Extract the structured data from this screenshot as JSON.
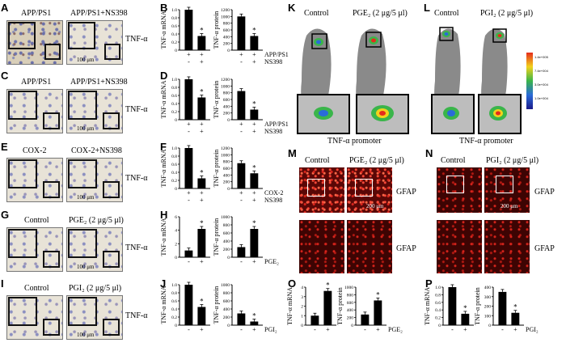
{
  "panels": {
    "A": {
      "letter": "A",
      "left": "APP/PS1",
      "right": "APP/PS1+NS398",
      "marker": "TNF-α",
      "scale": "100 μm"
    },
    "C": {
      "letter": "C",
      "left": "APP/PS1",
      "right": "APP/PS1+NS398",
      "marker": "TNF-α",
      "scale": "100 μm"
    },
    "E": {
      "letter": "E",
      "left": "COX-2",
      "right": "COX-2+NS398",
      "marker": "TNF-α",
      "scale": "100 μm"
    },
    "G": {
      "letter": "G",
      "left": "Control",
      "right": "PGE₂ (2 μg/5 μl)",
      "marker": "TNF-α",
      "scale": "100 μm"
    },
    "I": {
      "letter": "I",
      "left": "Control",
      "right": "PGI₂ (2 μg/5 μl)",
      "marker": "TNF-α",
      "scale": "100 μm"
    },
    "K": {
      "letter": "K",
      "left": "Control",
      "right": "PGE₂ (2 μg/5 μl)",
      "caption": "TNF-α promoter"
    },
    "L": {
      "letter": "L",
      "left": "Control",
      "right": "PGI₂ (2 μg/5 μl)",
      "caption": "TNF-α promoter"
    },
    "M": {
      "letter": "M",
      "left": "Control",
      "right": "PGE₂ (2 μg/5 μl)",
      "marker": "GFAP",
      "scale": "200 μm"
    },
    "N": {
      "letter": "N",
      "left": "Control",
      "right": "PGI₂ (2 μg/5 μl)",
      "marker": "GFAP",
      "scale": "200 μm"
    },
    "B": {
      "letter": "B"
    },
    "D": {
      "letter": "D"
    },
    "F": {
      "letter": "F"
    },
    "H": {
      "letter": "H"
    },
    "J": {
      "letter": "J"
    },
    "O": {
      "letter": "O"
    },
    "P": {
      "letter": "P"
    }
  },
  "colorbar": [
    "1.4e+005",
    "7.4e+004",
    "3.0e+004",
    "1.0e+004",
    "5.0e+003"
  ],
  "chart_data": [
    {
      "id": "B-mrna",
      "type": "bar",
      "ylabel": "TNF-α mRNA",
      "ylim": [
        0,
        1.0
      ],
      "ticks": [
        "0",
        "0.2",
        "0.4",
        "0.6",
        "0.8",
        "1.0"
      ],
      "values": [
        1.0,
        0.35
      ],
      "stars": [
        false,
        true
      ],
      "treat_rows": [
        {
          "name": "APP/PS1",
          "marks": [
            "+",
            "+"
          ]
        },
        {
          "name": "NS398",
          "marks": [
            "-",
            "+"
          ]
        }
      ],
      "show_names": false
    },
    {
      "id": "B-protein",
      "type": "bar",
      "ylabel": "TNF-α protein",
      "ylim": [
        0,
        1200
      ],
      "ticks": [
        "0",
        "200",
        "400",
        "600",
        "800",
        "1000",
        "1200"
      ],
      "values": [
        1000,
        420
      ],
      "stars": [
        false,
        true
      ],
      "treat_rows": [
        {
          "name": "APP/PS1",
          "marks": [
            "+",
            "+"
          ]
        },
        {
          "name": "NS398",
          "marks": [
            "-",
            "+"
          ]
        }
      ],
      "show_names": true
    },
    {
      "id": "D-mrna",
      "type": "bar",
      "ylabel": "TNF-α mRNA",
      "ylim": [
        0,
        1.0
      ],
      "ticks": [
        "0",
        "0.2",
        "0.4",
        "0.6",
        "0.8",
        "1.0"
      ],
      "values": [
        1.0,
        0.55
      ],
      "stars": [
        false,
        true
      ],
      "treat_rows": [
        {
          "name": "APP/PS1",
          "marks": [
            "+",
            "+"
          ]
        },
        {
          "name": "NS398",
          "marks": [
            "-",
            "+"
          ]
        }
      ],
      "show_names": false
    },
    {
      "id": "D-protein",
      "type": "bar",
      "ylabel": "TNF-α protein",
      "ylim": [
        0,
        1200
      ],
      "ticks": [
        "0",
        "200",
        "400",
        "600",
        "800",
        "1000",
        "1200"
      ],
      "values": [
        850,
        300
      ],
      "stars": [
        false,
        true
      ],
      "treat_rows": [
        {
          "name": "APP/PS1",
          "marks": [
            "+",
            "+"
          ]
        },
        {
          "name": "NS398",
          "marks": [
            "-",
            "+"
          ]
        }
      ],
      "show_names": true
    },
    {
      "id": "F-mrna",
      "type": "bar",
      "ylabel": "TNF-α mRNA",
      "ylim": [
        0,
        1.0
      ],
      "ticks": [
        "0",
        "0.2",
        "0.4",
        "0.6",
        "0.8",
        "1.0"
      ],
      "values": [
        1.0,
        0.25
      ],
      "stars": [
        false,
        true
      ],
      "treat_rows": [
        {
          "name": "COX-2",
          "marks": [
            "+",
            "+"
          ]
        },
        {
          "name": "NS398",
          "marks": [
            "-",
            "+"
          ]
        }
      ],
      "show_names": false
    },
    {
      "id": "F-protein",
      "type": "bar",
      "ylabel": "TNF-α protein",
      "ylim": [
        0,
        1200
      ],
      "ticks": [
        "0",
        "200",
        "400",
        "600",
        "800",
        "1000",
        "1200"
      ],
      "values": [
        750,
        450
      ],
      "stars": [
        false,
        true
      ],
      "treat_rows": [
        {
          "name": "COX-2",
          "marks": [
            "+",
            "+"
          ]
        },
        {
          "name": "NS398",
          "marks": [
            "-",
            "+"
          ]
        }
      ],
      "show_names": true
    },
    {
      "id": "H-mrna",
      "type": "bar",
      "ylabel": "TNF-α mRNA",
      "ylim": [
        0,
        6
      ],
      "ticks": [
        "0",
        "2",
        "4",
        "6"
      ],
      "values": [
        1.0,
        4.2
      ],
      "stars": [
        false,
        true
      ],
      "treat_rows": [
        {
          "name": "PGE₂",
          "marks": [
            "-",
            "+"
          ]
        }
      ],
      "show_names": false
    },
    {
      "id": "H-protein",
      "type": "bar",
      "ylabel": "TNF-α protein",
      "ylim": [
        0,
        1000
      ],
      "ticks": [
        "0",
        "200",
        "400",
        "600",
        "800",
        "1000"
      ],
      "values": [
        250,
        700
      ],
      "stars": [
        false,
        true
      ],
      "treat_rows": [
        {
          "name": "PGE₂",
          "marks": [
            "-",
            "+"
          ]
        }
      ],
      "show_names": true
    },
    {
      "id": "J-mrna",
      "type": "bar",
      "ylabel": "TNF-α mRNA",
      "ylim": [
        0,
        1.0
      ],
      "ticks": [
        "0",
        "0.2",
        "0.4",
        "0.6",
        "0.8",
        "1.0"
      ],
      "values": [
        1.0,
        0.45
      ],
      "stars": [
        false,
        true
      ],
      "treat_rows": [
        {
          "name": "PGI₂",
          "marks": [
            "-",
            "+"
          ]
        }
      ],
      "show_names": false
    },
    {
      "id": "J-protein",
      "type": "bar",
      "ylabel": "TNF-α protein",
      "ylim": [
        0,
        1000
      ],
      "ticks": [
        "0",
        "200",
        "400",
        "600",
        "800",
        "1000"
      ],
      "values": [
        290,
        90
      ],
      "stars": [
        false,
        true
      ],
      "treat_rows": [
        {
          "name": "PGI₂",
          "marks": [
            "-",
            "+"
          ]
        }
      ],
      "show_names": true
    },
    {
      "id": "O-mrna",
      "type": "bar",
      "ylabel": "TNF-α mRNA",
      "ylim": [
        0,
        4
      ],
      "ticks": [
        "0",
        "1",
        "2",
        "3",
        "4"
      ],
      "values": [
        1.0,
        3.6
      ],
      "stars": [
        false,
        true
      ],
      "treat_rows": [
        {
          "name": "PGE₂",
          "marks": [
            "-",
            "+"
          ]
        }
      ],
      "show_names": false
    },
    {
      "id": "O-protein",
      "type": "bar",
      "ylabel": "TNF-α protein",
      "ylim": [
        0,
        1000
      ],
      "ticks": [
        "0",
        "200",
        "400",
        "600",
        "800",
        "1000"
      ],
      "values": [
        280,
        650
      ],
      "stars": [
        false,
        true
      ],
      "treat_rows": [
        {
          "name": "PGE₂",
          "marks": [
            "-",
            "+"
          ]
        }
      ],
      "show_names": true
    },
    {
      "id": "P-mrna",
      "type": "bar",
      "ylabel": "TNF-α mRNA",
      "ylim": [
        0,
        1.0
      ],
      "ticks": [
        "0",
        "0.2",
        "0.4",
        "0.6",
        "0.8",
        "1.0"
      ],
      "values": [
        1.0,
        0.3
      ],
      "stars": [
        false,
        true
      ],
      "treat_rows": [
        {
          "name": "PGI₂",
          "marks": [
            "-",
            "+"
          ]
        }
      ],
      "show_names": false
    },
    {
      "id": "P-protein",
      "type": "bar",
      "ylabel": "TNF-α protein",
      "ylim": [
        0,
        400
      ],
      "ticks": [
        "0",
        "100",
        "200",
        "300",
        "400"
      ],
      "values": [
        350,
        130
      ],
      "stars": [
        false,
        true
      ],
      "treat_rows": [
        {
          "name": "PGI₂",
          "marks": [
            "-",
            "+"
          ]
        }
      ],
      "show_names": true
    }
  ]
}
